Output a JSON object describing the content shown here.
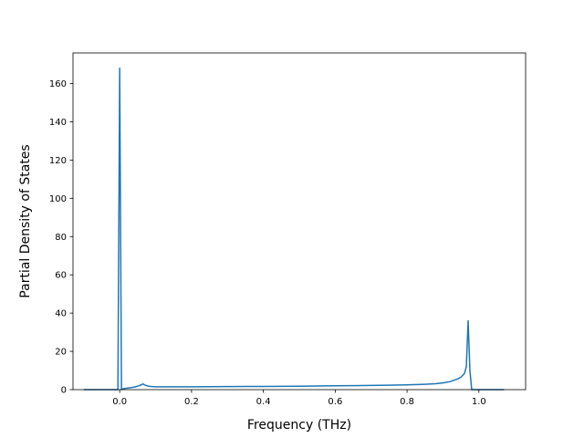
{
  "chart_data": {
    "type": "line",
    "title": "",
    "xlabel": "Frequency (THz)",
    "ylabel": "Partial Density of States",
    "xlim": [
      -0.13,
      1.13
    ],
    "ylim": [
      0,
      176
    ],
    "xticks": [
      0.0,
      0.2,
      0.4,
      0.6,
      0.8,
      1.0
    ],
    "xtick_labels": [
      "0.0",
      "0.2",
      "0.4",
      "0.6",
      "0.8",
      "1.0"
    ],
    "yticks": [
      0,
      20,
      40,
      60,
      80,
      100,
      120,
      140,
      160
    ],
    "ytick_labels": [
      "0",
      "20",
      "40",
      "60",
      "80",
      "100",
      "120",
      "140",
      "160"
    ],
    "grid": false,
    "line_color": "#1f77b4",
    "series": [
      {
        "x": [
          -0.1,
          -0.01,
          -0.005,
          0.0,
          0.005,
          0.01,
          0.02,
          0.03,
          0.04,
          0.05,
          0.06,
          0.065,
          0.07,
          0.08,
          0.09,
          0.1,
          0.15,
          0.2,
          0.25,
          0.3,
          0.35,
          0.4,
          0.45,
          0.5,
          0.55,
          0.6,
          0.65,
          0.7,
          0.75,
          0.8,
          0.85,
          0.88,
          0.9,
          0.92,
          0.94,
          0.95,
          0.96,
          0.965,
          0.97,
          0.975,
          0.98,
          0.985,
          1.0,
          1.03,
          1.07
        ],
        "y": [
          0,
          0,
          0,
          168,
          0,
          0.5,
          0.8,
          1.0,
          1.3,
          1.8,
          2.5,
          3.0,
          2.4,
          1.8,
          1.6,
          1.5,
          1.5,
          1.5,
          1.55,
          1.6,
          1.65,
          1.7,
          1.75,
          1.8,
          1.9,
          2.0,
          2.1,
          2.2,
          2.35,
          2.5,
          2.8,
          3.1,
          3.5,
          4.2,
          5.5,
          6.5,
          8.5,
          12,
          36,
          10,
          0,
          0,
          0,
          0,
          0
        ]
      }
    ]
  }
}
